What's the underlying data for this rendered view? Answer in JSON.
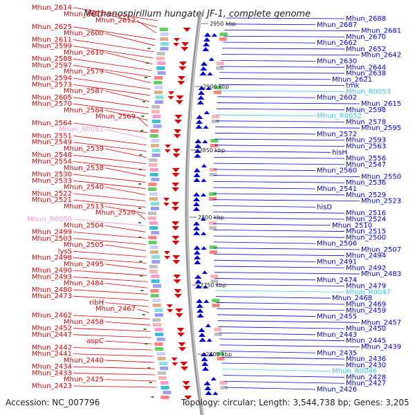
{
  "title": "Methanospirillum hungatei JF-1, complete genome",
  "accession": "Accession: NC_007796",
  "summary": "Topology: circular; Length: 3,544,738 bp; Genes: 3,205",
  "colors": {
    "forward": "#e00000",
    "reverse": "#0000e0",
    "rna_forward": "#ff99cc",
    "rna_reverse": "#33ccee",
    "backbone": "#999999"
  },
  "kbp_marks": [
    "2950 kbp",
    "2900 kbp",
    "2850 kbp",
    "2800 kbp",
    "2750 kbp",
    "2700 kbp"
  ],
  "left_labels": [
    {
      "text": "Mhun_2614",
      "type": "f"
    },
    {
      "text": "Mhun_2603",
      "type": "f"
    },
    {
      "text": "Mhun_2612",
      "type": "f"
    },
    {
      "text": "Mhun_2625",
      "type": "f"
    },
    {
      "text": "Mhun_2600",
      "type": "f"
    },
    {
      "text": "Mhun_2611",
      "type": "f"
    },
    {
      "text": "Mhun_2599",
      "type": "f"
    },
    {
      "text": "Mhun_2610",
      "type": "f"
    },
    {
      "text": "Mhun_2588",
      "type": "f"
    },
    {
      "text": "Mhun_2597",
      "type": "f"
    },
    {
      "text": "Mhun_2579",
      "type": "f"
    },
    {
      "text": "Mhun_2594",
      "type": "f"
    },
    {
      "text": "Mhun_2573",
      "type": "f"
    },
    {
      "text": "Mhun_2587",
      "type": "f"
    },
    {
      "text": "Mhun_2605",
      "type": "f"
    },
    {
      "text": "Mhun_2570",
      "type": "f"
    },
    {
      "text": "Mhun_2584",
      "type": "f"
    },
    {
      "text": "Mhun_2569",
      "type": "f"
    },
    {
      "text": "Mhun_2564",
      "type": "f"
    },
    {
      "text": "Mhun_R0051",
      "type": "r"
    },
    {
      "text": "Mhun_2551",
      "type": "f"
    },
    {
      "text": "Mhun_2549",
      "type": "f"
    },
    {
      "text": "Mhun_2539",
      "type": "f"
    },
    {
      "text": "Mhun_2548",
      "type": "f"
    },
    {
      "text": "Mhun_2554",
      "type": "f"
    },
    {
      "text": "Mhun_2538",
      "type": "f"
    },
    {
      "text": "Mhun_2530",
      "type": "f"
    },
    {
      "text": "Mhun_2533",
      "type": "f"
    },
    {
      "text": "Mhun_2540",
      "type": "f"
    },
    {
      "text": "Mhun_2522",
      "type": "f"
    },
    {
      "text": "Mhun_2521",
      "type": "f"
    },
    {
      "text": "Mhun_2513",
      "type": "f"
    },
    {
      "text": "Mhun_2520",
      "type": "f"
    },
    {
      "text": "Mhun_R0050",
      "type": "r"
    },
    {
      "text": "Mhun_2504",
      "type": "f"
    },
    {
      "text": "Mhun_2499",
      "type": "f"
    },
    {
      "text": "Mhun_2503",
      "type": "f"
    },
    {
      "text": "Mhun_2505",
      "type": "f"
    },
    {
      "text": "lysS",
      "type": "f"
    },
    {
      "text": "Mhun_2498",
      "type": "f"
    },
    {
      "text": "Mhun_2495",
      "type": "f"
    },
    {
      "text": "Mhun_2490",
      "type": "f"
    },
    {
      "text": "Mhun_2493",
      "type": "f"
    },
    {
      "text": "Mhun_2484",
      "type": "f"
    },
    {
      "text": "Mhun_2480",
      "type": "f"
    },
    {
      "text": "Mhun_2473",
      "type": "f"
    },
    {
      "text": "ribH",
      "type": "f"
    },
    {
      "text": "Mhun_2467",
      "type": "f"
    },
    {
      "text": "Mhun_2462",
      "type": "f"
    },
    {
      "text": "Mhun_2458",
      "type": "f"
    },
    {
      "text": "Mhun_2452",
      "type": "f"
    },
    {
      "text": "Mhun_2447",
      "type": "f"
    },
    {
      "text": "aspC",
      "type": "f"
    },
    {
      "text": "Mhun_2442",
      "type": "f"
    },
    {
      "text": "Mhun_2441",
      "type": "f"
    },
    {
      "text": "Mhun_2440",
      "type": "f"
    },
    {
      "text": "Mhun_2434",
      "type": "f"
    },
    {
      "text": "Mhun_2433",
      "type": "f"
    },
    {
      "text": "Mhun_2425",
      "type": "f"
    },
    {
      "text": "Mhun_2423",
      "type": "f"
    }
  ],
  "right_labels": [
    {
      "text": "Mhun_2688",
      "type": "f"
    },
    {
      "text": "Mhun_2687",
      "type": "f"
    },
    {
      "text": "Mhun_2681",
      "type": "f"
    },
    {
      "text": "Mhun_2670",
      "type": "f"
    },
    {
      "text": "Mhun_2662",
      "type": "f"
    },
    {
      "text": "Mhun_2652",
      "type": "f"
    },
    {
      "text": "Mhun_2642",
      "type": "f"
    },
    {
      "text": "Mhun_2630",
      "type": "f"
    },
    {
      "text": "Mhun_2644",
      "type": "f"
    },
    {
      "text": "Mhun_2638",
      "type": "f"
    },
    {
      "text": "Mhun_2621",
      "type": "f"
    },
    {
      "text": "tmk",
      "type": "f"
    },
    {
      "text": "Mhun_R0053",
      "type": "r"
    },
    {
      "text": "Mhun_2602",
      "type": "f"
    },
    {
      "text": "Mhun_2615",
      "type": "f"
    },
    {
      "text": "Mhun_2598",
      "type": "f"
    },
    {
      "text": "Mhun_R0052",
      "type": "r"
    },
    {
      "text": "Mhun_2578",
      "type": "f"
    },
    {
      "text": "Mhun_2595",
      "type": "f"
    },
    {
      "text": "Mhun_2572",
      "type": "f"
    },
    {
      "text": "Mhun_2593",
      "type": "f"
    },
    {
      "text": "Mhun_2563",
      "type": "f"
    },
    {
      "text": "hisH",
      "type": "f"
    },
    {
      "text": "Mhun_2556",
      "type": "f"
    },
    {
      "text": "Mhun_2547",
      "type": "f"
    },
    {
      "text": "Mhun_2560",
      "type": "f"
    },
    {
      "text": "Mhun_2550",
      "type": "f"
    },
    {
      "text": "Mhun_2536",
      "type": "f"
    },
    {
      "text": "Mhun_2541",
      "type": "f"
    },
    {
      "text": "Mhun_2529",
      "type": "f"
    },
    {
      "text": "Mhun_2523",
      "type": "f"
    },
    {
      "text": "hisD",
      "type": "f"
    },
    {
      "text": "Mhun_2516",
      "type": "f"
    },
    {
      "text": "Mhun_2524",
      "type": "f"
    },
    {
      "text": "Mhun_2510",
      "type": "f"
    },
    {
      "text": "Mhun_2515",
      "type": "f"
    },
    {
      "text": "Mhun_2500",
      "type": "f"
    },
    {
      "text": "Mhun_2506",
      "type": "f"
    },
    {
      "text": "Mhun_2507",
      "type": "f"
    },
    {
      "text": "Mhun_2494",
      "type": "f"
    },
    {
      "text": "Mhun_2491",
      "type": "f"
    },
    {
      "text": "Mhun_2492",
      "type": "f"
    },
    {
      "text": "Mhun_2483",
      "type": "f"
    },
    {
      "text": "Mhun_2474",
      "type": "f"
    },
    {
      "text": "Mhun_2479",
      "type": "f"
    },
    {
      "text": "Mhun_R0047",
      "type": "r"
    },
    {
      "text": "Mhun_2468",
      "type": "f"
    },
    {
      "text": "Mhun_2469",
      "type": "f"
    },
    {
      "text": "Mhun_2459",
      "type": "f"
    },
    {
      "text": "Mhun_2455",
      "type": "f"
    },
    {
      "text": "Mhun_2457",
      "type": "f"
    },
    {
      "text": "Mhun_2450",
      "type": "f"
    },
    {
      "text": "Mhun_2443",
      "type": "f"
    },
    {
      "text": "Mhun_2445",
      "type": "f"
    },
    {
      "text": "Mhun_2439",
      "type": "f"
    },
    {
      "text": "Mhun_2435",
      "type": "f"
    },
    {
      "text": "Mhun_2436",
      "type": "f"
    },
    {
      "text": "Mhun_2430",
      "type": "f"
    },
    {
      "text": "Mhun_R0046",
      "type": "r"
    },
    {
      "text": "Mhun_2428",
      "type": "f"
    },
    {
      "text": "Mhun_2427",
      "type": "f"
    },
    {
      "text": "Mhun_2426",
      "type": "f"
    }
  ]
}
